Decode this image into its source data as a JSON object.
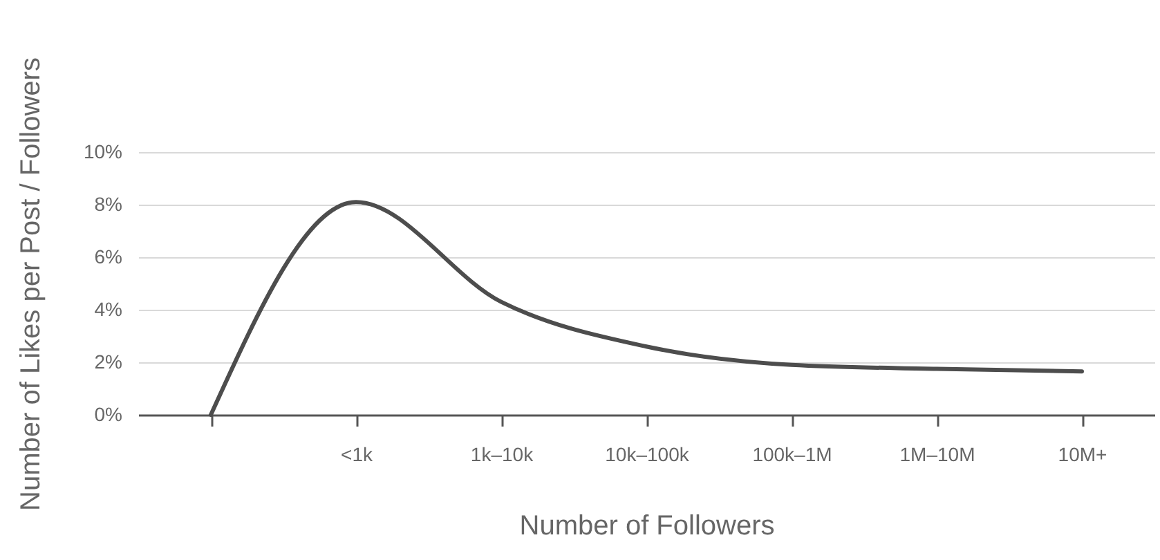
{
  "chart_data": {
    "type": "line",
    "xlabel": "Number of Followers",
    "ylabel": "Number of Likes per Post / Followers",
    "categories": [
      null,
      "<1k",
      "1k–10k",
      "10k–100k",
      "100k–1M",
      "1M–10M",
      "10M+"
    ],
    "series": [
      {
        "color": "#4d4d4d",
        "values": [
          0,
          8.1,
          4.3,
          2.6,
          1.9,
          1.75,
          1.65
        ]
      }
    ],
    "ylim": [
      0,
      10
    ],
    "yticks": [
      {
        "value": 0,
        "label": "0%"
      },
      {
        "value": 2,
        "label": "2%"
      },
      {
        "value": 4,
        "label": "4%"
      },
      {
        "value": 6,
        "label": "6%"
      },
      {
        "value": 8,
        "label": "8%"
      },
      {
        "value": 10,
        "label": "10%"
      }
    ],
    "grid": "y",
    "marker": "none",
    "line_style": "solid"
  }
}
